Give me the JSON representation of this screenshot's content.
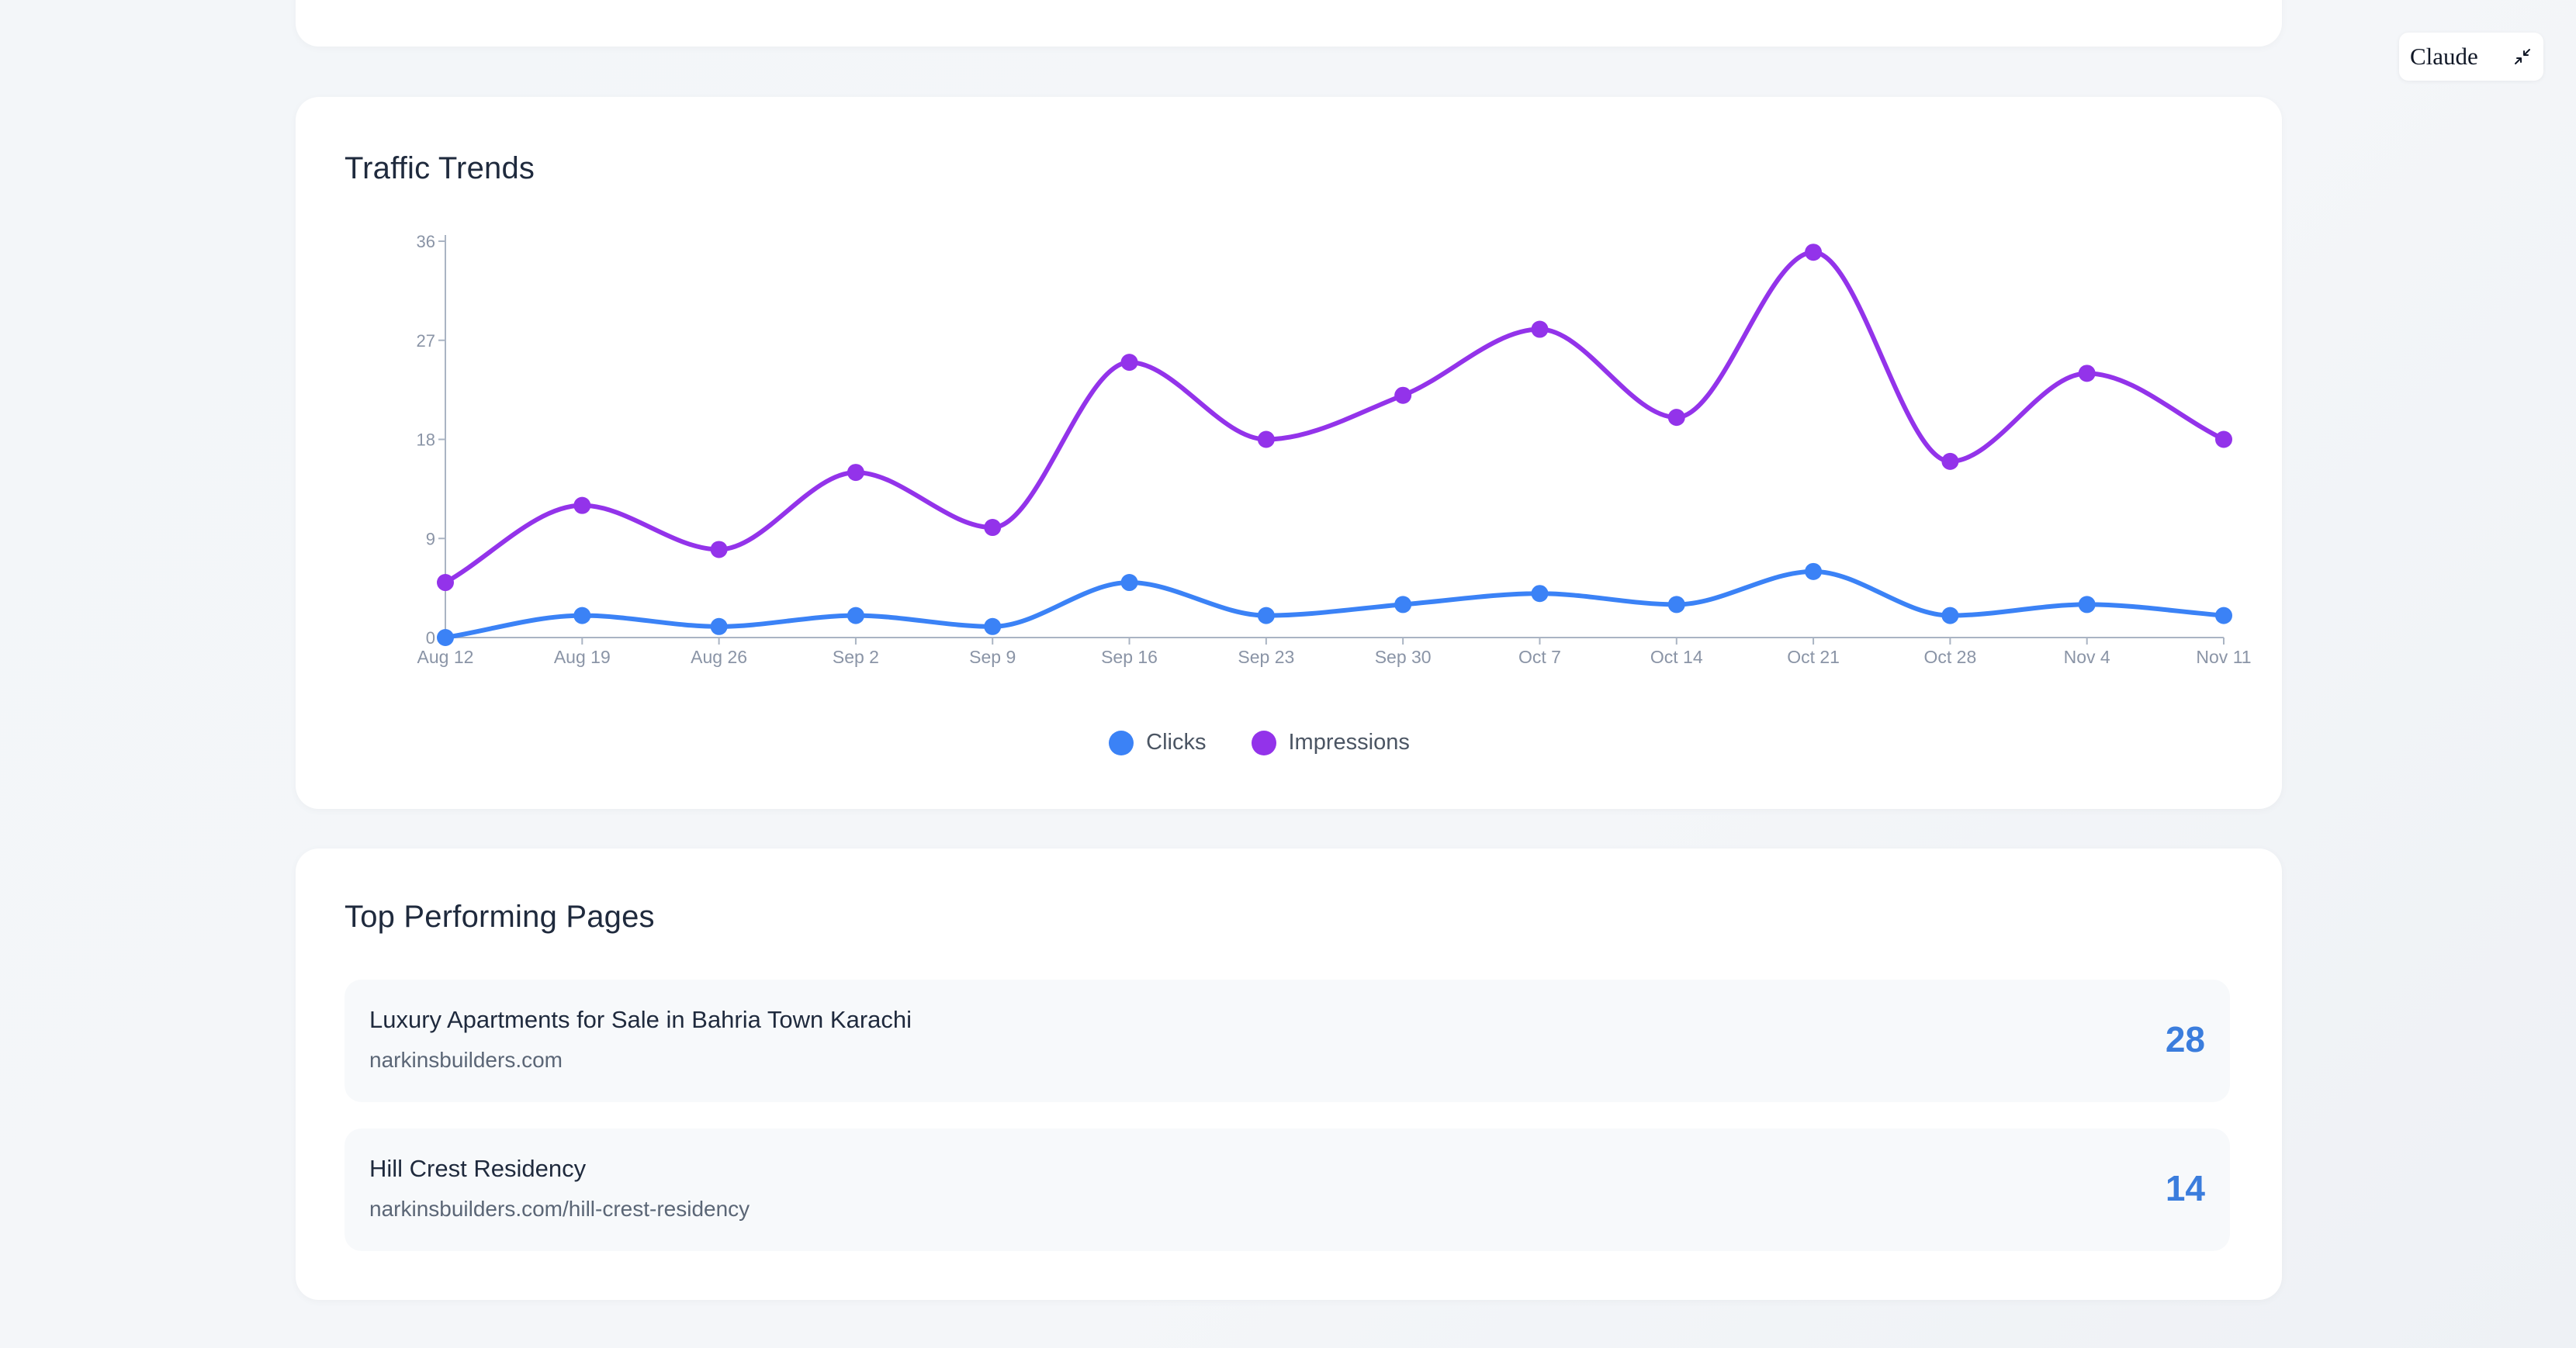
{
  "traffic_trends": {
    "title": "Traffic Trends",
    "legend": [
      {
        "label": "Clicks",
        "color": "#3b82f6"
      },
      {
        "label": "Impressions",
        "color": "#9333ea"
      }
    ]
  },
  "chart_data": {
    "type": "line",
    "smooth": true,
    "categories": [
      "Aug 12",
      "Aug 19",
      "Aug 26",
      "Sep 2",
      "Sep 9",
      "Sep 16",
      "Sep 23",
      "Sep 30",
      "Oct 7",
      "Oct 14",
      "Oct 21",
      "Oct 28",
      "Nov 4",
      "Nov 11"
    ],
    "series": [
      {
        "name": "Clicks",
        "color": "#3b82f6",
        "values": [
          0,
          2,
          1,
          2,
          1,
          5,
          2,
          3,
          4,
          3,
          6,
          2,
          3,
          2
        ]
      },
      {
        "name": "Impressions",
        "color": "#9333ea",
        "values": [
          5,
          12,
          8,
          15,
          10,
          25,
          18,
          22,
          28,
          20,
          35,
          16,
          24,
          18
        ]
      }
    ],
    "yticks": [
      0,
      9,
      18,
      27,
      36
    ],
    "ylim": [
      0,
      36
    ],
    "grid": false,
    "legend_position": "bottom-center"
  },
  "top_pages": {
    "title": "Top Performing Pages",
    "items": [
      {
        "title": "Luxury Apartments for Sale in Bahria Town Karachi",
        "url": "narkinsbuilders.com",
        "count": "28"
      },
      {
        "title": "Hill Crest Residency",
        "url": "narkinsbuilders.com/hill-crest-residency",
        "count": "14"
      }
    ]
  },
  "claude_badge": {
    "label": "Claude",
    "icon": "collapse-icon"
  }
}
